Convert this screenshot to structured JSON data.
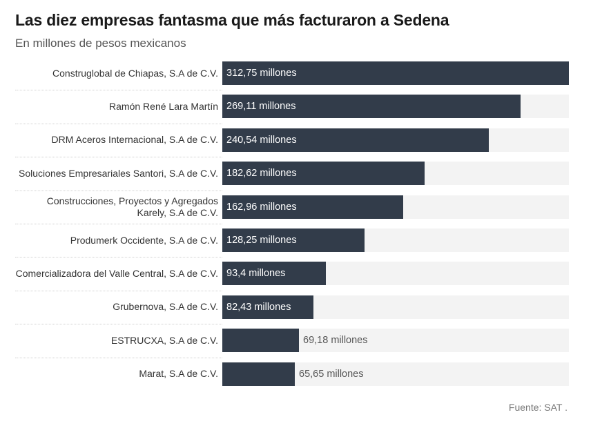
{
  "header": {
    "title": "Las diez empresas fantasma que más facturaron a Sedena",
    "subtitle": "En millones de pesos mexicanos"
  },
  "footer": {
    "source": "Fuente: SAT ."
  },
  "colors": {
    "bar": "#323c4a",
    "track": "#f3f3f3",
    "inside_label": "#ffffff",
    "outside_label": "#555555"
  },
  "chart_data": {
    "type": "bar",
    "orientation": "horizontal",
    "title": "Las diez empresas fantasma que más facturaron a Sedena",
    "subtitle": "En millones de pesos mexicanos",
    "xlim": [
      0,
      312.75
    ],
    "categories": [
      "Construglobal de Chiapas, S.A de C.V.",
      "Ramón René Lara Martín",
      "DRM Aceros Internacional, S.A de C.V.",
      "Soluciones Empresariales Santori, S.A de C.V.",
      "Construcciones, Proyectos y Agregados Karely, S.A de C.V.",
      "Produmerk Occidente, S.A de C.V.",
      "Comercializadora del Valle Central, S.A de C.V.",
      "Grubernova, S.A de C.V.",
      "ESTRUCXA, S.A de C.V.",
      "Marat, S.A de C.V."
    ],
    "values": [
      312.75,
      269.11,
      240.54,
      182.62,
      162.96,
      128.25,
      93.4,
      82.43,
      69.18,
      65.65
    ],
    "value_labels": [
      "312,75 millones",
      "269,11 millones",
      "240,54 millones",
      "182,62 millones",
      "162,96 millones",
      "128,25 millones",
      "93,4 millones",
      "82,43 millones",
      "69,18 millones",
      "65,65 millones"
    ],
    "source": "Fuente: SAT ."
  }
}
